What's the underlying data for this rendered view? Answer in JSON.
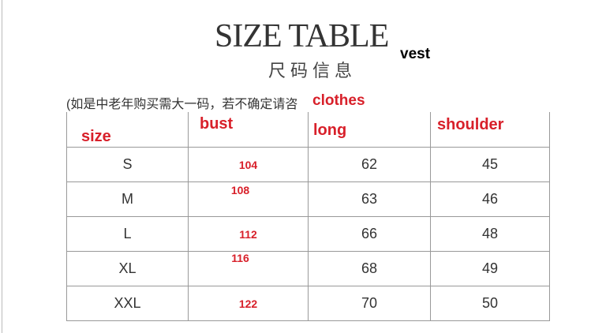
{
  "title": "SIZE TABLE",
  "subtitle": "尺码信息",
  "garment": "vest",
  "note": "(如是中老年购买需大一码，若不确定请咨",
  "note_overlay": "clothes",
  "headers": [
    "size",
    "bust",
    "long",
    "shoulder"
  ],
  "rows": [
    {
      "size": "S",
      "bust": "104",
      "long": "62",
      "shoulder": "45"
    },
    {
      "size": "M",
      "bust": "108",
      "long": "63",
      "shoulder": "46"
    },
    {
      "size": "L",
      "bust": "112",
      "long": "66",
      "shoulder": "48"
    },
    {
      "size": "XL",
      "bust": "116",
      "long": "68",
      "shoulder": "49"
    },
    {
      "size": "XXL",
      "bust": "122",
      "long": "70",
      "shoulder": "50"
    }
  ],
  "colors": {
    "label_red": "#d8202a",
    "text": "#333333",
    "grid": "#999999"
  }
}
